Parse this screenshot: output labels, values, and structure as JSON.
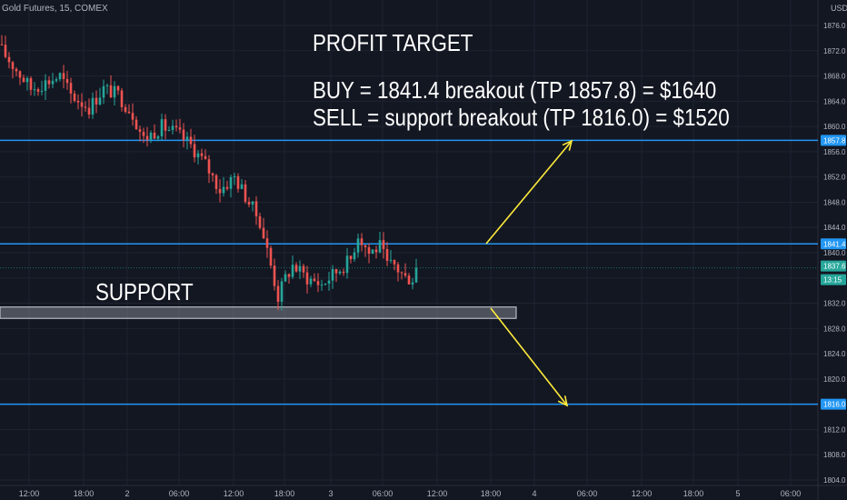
{
  "header": {
    "symbol_info": "Gold Futures, 15, COMEX",
    "currency": "USD"
  },
  "annotations": {
    "title": "PROFIT TARGET",
    "buy": "BUY = 1841.4 breakout (TP 1857.8) = $1640",
    "sell": "SELL = support breakout (TP 1816.0) = $1520",
    "support": "SUPPORT"
  },
  "colors": {
    "background": "#131722",
    "grid": "#1f2330",
    "up": "#26a69a",
    "down": "#ef5350",
    "level_line": "#2196f3",
    "arrow": "#ffeb3b",
    "support_zone": "#9598a1",
    "axis_text": "#b2b5be",
    "last_price": "#26a69a"
  },
  "chart_data": {
    "type": "candlestick",
    "title": "Gold Futures, 15, COMEX",
    "y_axis": {
      "label": "USD",
      "range": [
        1803,
        1878
      ],
      "ticks": [
        1804.0,
        1808.0,
        1812.0,
        1816.0,
        1820.0,
        1824.0,
        1828.0,
        1832.0,
        1836.0,
        1840.0,
        1844.0,
        1848.0,
        1852.0,
        1856.0,
        1860.0,
        1864.0,
        1868.0,
        1872.0,
        1876.0
      ]
    },
    "x_axis": {
      "ticks": [
        "12:00",
        "18:00",
        "2",
        "06:00",
        "12:00",
        "18:00",
        "3",
        "06:00",
        "12:00",
        "18:00",
        "4",
        "06:00",
        "12:00",
        "18:00",
        "5",
        "06:00"
      ]
    },
    "grid": true,
    "price_labels": [
      {
        "text": "1857.8",
        "value": 1857.8
      },
      {
        "text": "1841.4",
        "value": 1841.4
      },
      {
        "text": "1837.6",
        "value": 1837.6
      },
      {
        "text": "13:15",
        "value": 1837.6
      },
      {
        "text": "1816.0",
        "value": 1816.0
      }
    ],
    "levels": [
      1857.8,
      1841.4,
      1816.0
    ],
    "last_price": 1837.6,
    "support_zone": [
      1829.6,
      1831.4
    ],
    "close_path": [
      [
        0,
        1872
      ],
      [
        4,
        1869
      ],
      [
        8,
        1866
      ],
      [
        12,
        1867
      ],
      [
        16,
        1868
      ],
      [
        19,
        1865
      ],
      [
        24,
        1863
      ],
      [
        28,
        1866
      ],
      [
        32,
        1865
      ],
      [
        36,
        1862
      ],
      [
        39,
        1858
      ],
      [
        44,
        1860
      ],
      [
        48,
        1859
      ],
      [
        52,
        1857
      ],
      [
        56,
        1854
      ],
      [
        60,
        1850
      ],
      [
        64,
        1852
      ],
      [
        68,
        1848
      ],
      [
        71,
        1845
      ],
      [
        74,
        1838
      ],
      [
        76,
        1833
      ],
      [
        78,
        1836
      ],
      [
        80,
        1838
      ],
      [
        84,
        1836
      ],
      [
        88,
        1835
      ],
      [
        92,
        1837
      ],
      [
        96,
        1839
      ],
      [
        98,
        1843
      ],
      [
        101,
        1840
      ],
      [
        104,
        1841
      ],
      [
        106,
        1838
      ],
      [
        108,
        1838
      ],
      [
        111,
        1836
      ],
      [
        114,
        1836
      ]
    ]
  }
}
